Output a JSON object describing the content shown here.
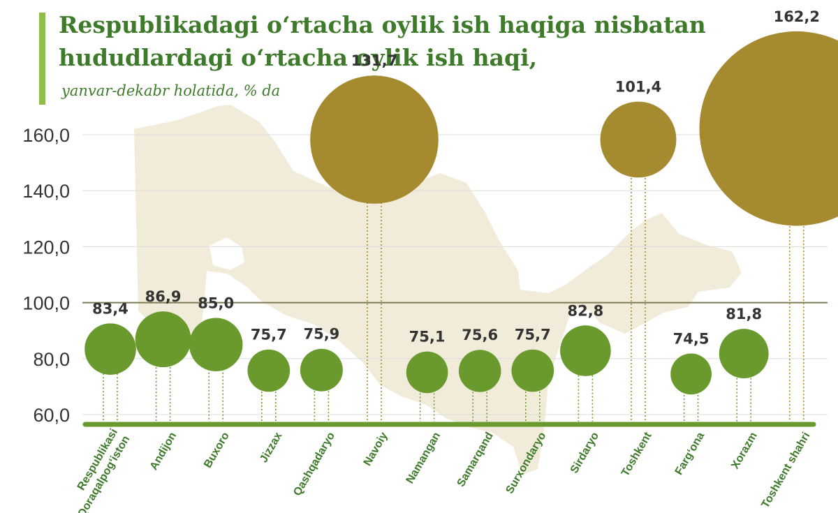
{
  "title": "Respublikadagi o‘rtacha oylik ish haqiga nisbatan hududlardagi o‘rtacha oylik ish haqi,",
  "subtitle": "yanvar-dekabr holatida, % da",
  "colors": {
    "normal": "#6a9a2e",
    "highlight": "#a58a30",
    "map": "#f1ebd9",
    "baseline": "#6a9a2e",
    "reference_line": "#7c7a55",
    "grid": "#dcdcdc",
    "text": "#333333"
  },
  "chart_data": {
    "type": "scatter",
    "title": "Respublikadagi o‘rtacha oylik ish haqiga nisbatan hududlardagi o‘rtacha oylik ish haqi,",
    "subtitle": "yanvar-dekabr holatida, % da",
    "ylim": [
      60,
      160
    ],
    "yticks": [
      "60,0",
      "80,0",
      "100,0",
      "120,0",
      "140,0",
      "160,0"
    ],
    "ytick_values": [
      60,
      80,
      100,
      120,
      140,
      160
    ],
    "reference_value": 100,
    "grid": true,
    "categories": [
      "Qoraqalpog‘iston Respublikasi",
      "Andijon",
      "Buxoro",
      "Jizzax",
      "Qashqadaryo",
      "Navoiy",
      "Namangan",
      "Samarqand",
      "Surxondaryo",
      "Sirdaryo",
      "Toshkent",
      "Farg‘ona",
      "Xorazm",
      "Toshkent shahri"
    ],
    "category_lines": [
      [
        "Qoraqalpog‘iston",
        "Respublikasi"
      ],
      [
        "Andijon"
      ],
      [
        "Buxoro"
      ],
      [
        "Jizzax"
      ],
      [
        "Qashqadaryo"
      ],
      [
        "Navoiy"
      ],
      [
        "Namangan"
      ],
      [
        "Samarqand"
      ],
      [
        "Surxondaryo"
      ],
      [
        "Sirdaryo"
      ],
      [
        "Toshkent"
      ],
      [
        "Farg‘ona"
      ],
      [
        "Xorazm"
      ],
      [
        "Toshkent shahri"
      ]
    ],
    "values": [
      83.4,
      86.9,
      85.0,
      75.7,
      75.9,
      131.7,
      75.1,
      75.6,
      75.7,
      82.8,
      101.4,
      74.5,
      81.8,
      162.2
    ],
    "labels": [
      "83,4",
      "86,9",
      "85,0",
      "75,7",
      "75,9",
      "131,7",
      "75,1",
      "75,6",
      "75,7",
      "82,8",
      "101,4",
      "74,5",
      "81,8",
      "162,2"
    ]
  }
}
